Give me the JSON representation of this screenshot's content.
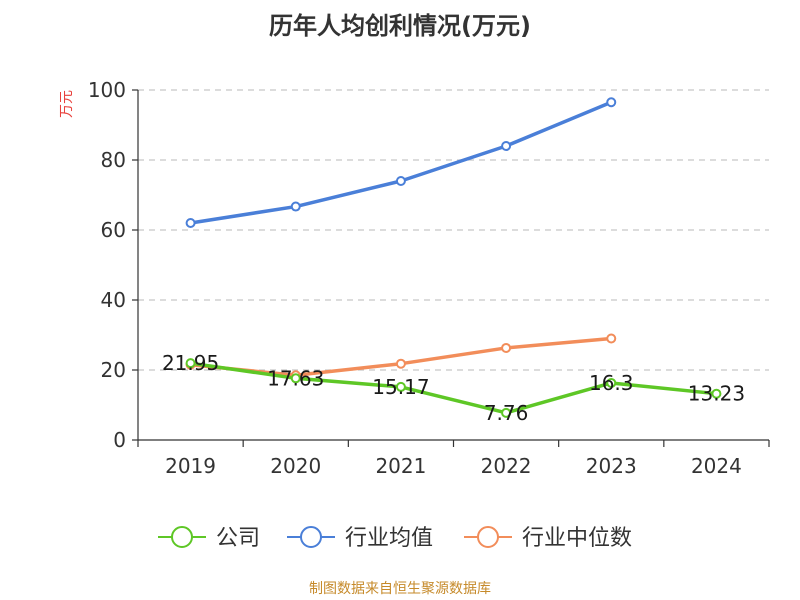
{
  "chart_data": {
    "type": "line",
    "title": "历年人均创利情况(万元)",
    "ylabel": "万元",
    "xlabel": "",
    "categories": [
      "2019",
      "2020",
      "2021",
      "2022",
      "2023",
      "2024"
    ],
    "ylim": [
      0,
      100
    ],
    "yticks": [
      0,
      20,
      40,
      60,
      80,
      100
    ],
    "grid": true,
    "legend_position": "bottom",
    "series": [
      {
        "name": "公司",
        "color": "#5ec726",
        "values": [
          21.95,
          17.63,
          15.17,
          7.76,
          16.3,
          13.23
        ],
        "labels": [
          "21.95",
          "17.63",
          "15.17",
          "7.76",
          "16.3",
          "13.23"
        ]
      },
      {
        "name": "行业均值",
        "color": "#4a7fd8",
        "values": [
          62,
          66.7,
          74,
          84,
          96.5,
          null
        ]
      },
      {
        "name": "行业中位数",
        "color": "#f28d5a",
        "values": [
          21.5,
          18.5,
          21.8,
          26.3,
          29,
          null
        ]
      }
    ]
  },
  "source": "制图数据来自恒生聚源数据库"
}
